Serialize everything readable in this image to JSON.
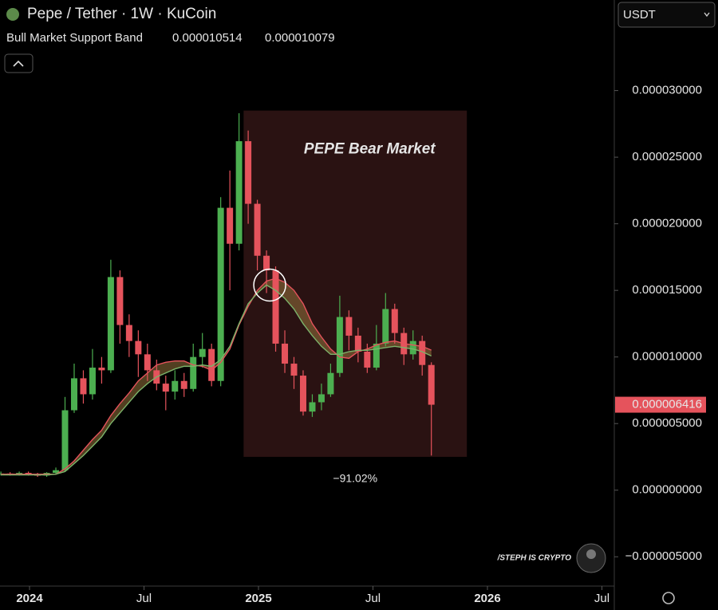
{
  "chart_data": {
    "type": "candlestick",
    "title": "Pepe / Tether · 1W · KuCoin",
    "currency": "USDT",
    "indicator": "Bull Market Support Band",
    "watermark": "/STEPH IS CRYPTO",
    "up_color": "#4caf50",
    "down_color": "#e5535c",
    "x": [
      2023.875,
      2023.915,
      2023.955,
      2023.995,
      2024.035,
      2024.075,
      2024.115,
      2024.155,
      2024.195,
      2024.235,
      2024.275,
      2024.315,
      2024.355,
      2024.395,
      2024.435,
      2024.475,
      2024.515,
      2024.555,
      2024.595,
      2024.635,
      2024.675,
      2024.715,
      2024.755,
      2024.795,
      2024.835,
      2024.875,
      2024.915,
      2024.955,
      2024.995,
      2025.035,
      2025.075,
      2025.115,
      2025.155,
      2025.195,
      2025.235,
      2025.275,
      2025.315,
      2025.355,
      2025.395,
      2025.435,
      2025.475,
      2025.515,
      2025.555,
      2025.595,
      2025.635,
      2025.675,
      2025.715,
      2025.755
    ],
    "open": [
      1.2e-06,
      1.25e-06,
      1.2e-06,
      1.3e-06,
      1.15e-06,
      1.1e-06,
      1.3e-06,
      1.5e-06,
      6e-06,
      8.4e-06,
      7.2e-06,
      9.2e-06,
      9e-06,
      1.6e-05,
      1.24e-05,
      1.12e-05,
      1.02e-05,
      9e-06,
      8e-06,
      7.4e-06,
      8.2e-06,
      7.6e-06,
      1e-05,
      1.06e-05,
      8.2e-06,
      2.12e-05,
      1.85e-05,
      2.62e-05,
      2.15e-05,
      1.76e-05,
      1.65e-05,
      1.1e-05,
      9.5e-06,
      8.6e-06,
      5.9e-06,
      6.6e-06,
      7.2e-06,
      8.8e-06,
      1.3e-05,
      1.16e-05,
      1.04e-05,
      9.2e-06,
      1.1e-05,
      1.36e-05,
      1.18e-05,
      1.02e-05,
      1.12e-05,
      9.4e-06
    ],
    "high": [
      1.4e-06,
      1.35e-06,
      1.4e-06,
      1.4e-06,
      1.3e-06,
      1.35e-06,
      1.7e-06,
      7e-06,
      9.5e-06,
      9e-06,
      1.06e-05,
      1e-05,
      1.73e-05,
      1.65e-05,
      1.32e-05,
      1.2e-05,
      1.1e-05,
      9.8e-06,
      8.6e-06,
      9e-06,
      8.8e-06,
      1.1e-05,
      1.18e-05,
      1.1e-05,
      2.2e-05,
      2.4e-05,
      2.83e-05,
      2.7e-05,
      2.18e-05,
      1.8e-05,
      1.68e-05,
      1.2e-05,
      1e-05,
      9e-06,
      7.2e-06,
      8e-06,
      9.5e-06,
      1.46e-05,
      1.35e-05,
      1.22e-05,
      1.1e-05,
      1.24e-05,
      1.48e-05,
      1.4e-05,
      1.22e-05,
      1.2e-05,
      1.16e-05,
      9.6e-06
    ],
    "low": [
      1.1e-06,
      1.1e-06,
      1.1e-06,
      1.1e-06,
      1e-06,
      1e-06,
      1.2e-06,
      1.4e-06,
      5.8e-06,
      6.5e-06,
      6.8e-06,
      8e-06,
      8.8e-06,
      1.1e-05,
      1e-05,
      8.5e-06,
      8.2e-06,
      7.5e-06,
      6e-06,
      6.8e-06,
      7e-06,
      7.4e-06,
      9.2e-06,
      7.8e-06,
      7.8e-06,
      1.5e-05,
      1.8e-05,
      2e-05,
      1.65e-05,
      1.48e-05,
      1.04e-05,
      8.8e-06,
      7.6e-06,
      5.6e-06,
      5.5e-06,
      6e-06,
      7e-06,
      8.5e-06,
      1.05e-05,
      9.6e-06,
      8.8e-06,
      9e-06,
      1.08e-05,
      1.1e-05,
      9.4e-06,
      9.8e-06,
      8.6e-06,
      2.6e-06
    ],
    "close": [
      1.25e-06,
      1.2e-06,
      1.3e-06,
      1.15e-06,
      1.1e-06,
      1.3e-06,
      1.5e-06,
      6e-06,
      8.4e-06,
      7.2e-06,
      9.2e-06,
      9e-06,
      1.6e-05,
      1.24e-05,
      1.12e-05,
      1.02e-05,
      9e-06,
      8e-06,
      7.4e-06,
      8.2e-06,
      7.6e-06,
      1e-05,
      1.06e-05,
      8.2e-06,
      2.12e-05,
      1.85e-05,
      2.62e-05,
      2.15e-05,
      1.76e-05,
      1.65e-05,
      1.1e-05,
      9.5e-06,
      8.6e-06,
      5.9e-06,
      6.6e-06,
      7.2e-06,
      8.8e-06,
      1.3e-05,
      1.16e-05,
      1.04e-05,
      9.2e-06,
      1.1e-05,
      1.36e-05,
      1.18e-05,
      1.02e-05,
      1.12e-05,
      9.4e-06,
      6.416e-06
    ],
    "close_label": "0.000006416",
    "series": [
      {
        "color": "#e5535c",
        "last_label": "0.000010514",
        "values": [
          1.2e-06,
          1.2e-06,
          1.2e-06,
          1.2e-06,
          1.2e-06,
          1.2e-06,
          1.2e-06,
          1.6e-06,
          2.2e-06,
          3e-06,
          3.8e-06,
          4.5e-06,
          5.6e-06,
          6.5e-06,
          7.3e-06,
          8.2e-06,
          8.8e-06,
          9.4e-06,
          9.6e-06,
          9.7e-06,
          9.7e-06,
          9.4e-06,
          9.3e-06,
          9e-06,
          9.6e-06,
          1.06e-05,
          1.24e-05,
          1.38e-05,
          1.5e-05,
          1.57e-05,
          1.59e-05,
          1.56e-05,
          1.5e-05,
          1.4e-05,
          1.25e-05,
          1.15e-05,
          1.06e-05,
          1e-05,
          9.9e-06,
          1.04e-05,
          1.06e-05,
          1.09e-05,
          1.11e-05,
          1.12e-05,
          1.1e-05,
          1.09e-05,
          1.08e-05,
          1.0514e-05
        ]
      },
      {
        "color": "#7cb36a",
        "last_label": "0.000010079",
        "values": [
          1.15e-06,
          1.15e-06,
          1.15e-06,
          1.15e-06,
          1.15e-06,
          1.15e-06,
          1.2e-06,
          1.4e-06,
          2e-06,
          2.6e-06,
          3.3e-06,
          4e-06,
          5e-06,
          5.8e-06,
          6.6e-06,
          7.4e-06,
          8e-06,
          8.5e-06,
          8.8e-06,
          9.1e-06,
          9.3e-06,
          9.3e-06,
          9.4e-06,
          9.3e-06,
          9.8e-06,
          1.08e-05,
          1.25e-05,
          1.4e-05,
          1.48e-05,
          1.54e-05,
          1.5e-05,
          1.44e-05,
          1.36e-05,
          1.25e-05,
          1.16e-05,
          1.08e-05,
          1.02e-05,
          1.02e-05,
          1.04e-05,
          1.05e-05,
          1.05e-05,
          1.06e-05,
          1.07e-05,
          1.08e-05,
          1.07e-05,
          1.06e-05,
          1.04e-05,
          1.0079e-05
        ]
      }
    ],
    "region": {
      "label": "PEPE Bear Market",
      "change_label": "−91.02%",
      "x": [
        2024.935,
        2025.91
      ],
      "y": [
        2.5e-06,
        2.85e-05
      ]
    },
    "marker": {
      "x": 2025.049,
      "y": 1.54e-05
    },
    "xlim": [
      2023.871,
      2026.554
    ],
    "xticks": [
      2024,
      {
        "value": 2024.5,
        "label": "Jul"
      },
      2025,
      {
        "value": 2025.5,
        "label": "Jul"
      },
      2026,
      {
        "value": 2026.5,
        "label": "Jul"
      }
    ],
    "ylim": [
      -7.2e-06,
      3.68e-05
    ],
    "yticks": [
      {
        "value": -5e-06,
        "label": "−0.000005000"
      },
      {
        "value": 0,
        "label": "0.000000000"
      },
      {
        "value": 5e-06,
        "label": "0.000005000"
      },
      {
        "value": 1e-05,
        "label": "0.000010000"
      },
      {
        "value": 1.5e-05,
        "label": "0.000015000"
      },
      {
        "value": 2e-05,
        "label": "0.000020000"
      },
      {
        "value": 2.5e-05,
        "label": "0.000025000"
      },
      {
        "value": 3e-05,
        "label": "0.000030000"
      }
    ]
  }
}
